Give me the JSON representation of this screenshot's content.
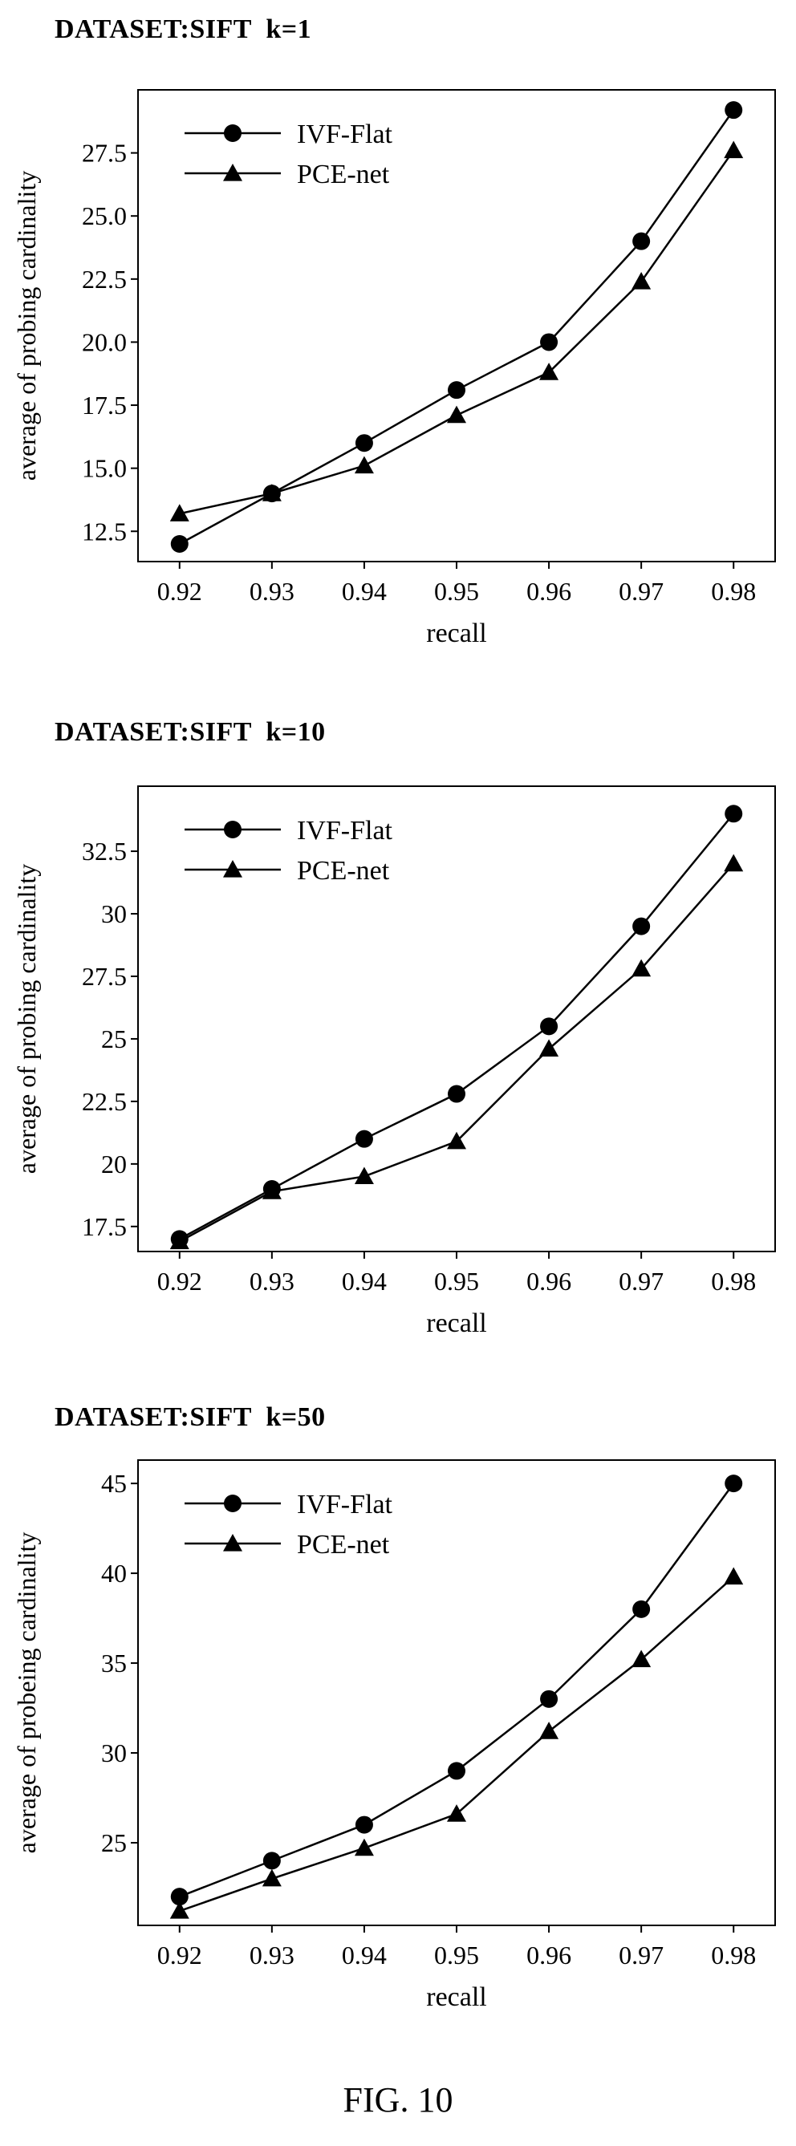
{
  "figure_caption": "FIG. 10",
  "chart_data": [
    {
      "type": "line",
      "title": "DATASET:SIFT  k=1",
      "xlabel": "recall",
      "ylabel": "average of probing cardinality",
      "x": [
        0.92,
        0.93,
        0.94,
        0.95,
        0.96,
        0.97,
        0.98
      ],
      "x_tick_labels": [
        "0.92",
        "0.93",
        "0.94",
        "0.95",
        "0.96",
        "0.97",
        "0.98"
      ],
      "y_ticks": [
        12.5,
        15.0,
        17.5,
        20.0,
        22.5,
        25.0,
        27.5
      ],
      "y_tick_labels": [
        "12.5",
        "15.0",
        "17.5",
        "20.0",
        "22.5",
        "25.0",
        "27.5"
      ],
      "ylim": [
        11.3,
        30.0
      ],
      "xlim": [
        0.9155,
        0.9845
      ],
      "legend_position": "top-left",
      "grid": false,
      "series": [
        {
          "name": "IVF-Flat",
          "marker": "circle",
          "values": [
            12.0,
            14.0,
            16.0,
            18.1,
            20.0,
            24.0,
            29.2
          ]
        },
        {
          "name": "PCE-net",
          "marker": "triangle",
          "values": [
            13.2,
            14.0,
            15.1,
            17.1,
            18.8,
            22.4,
            27.6
          ]
        }
      ]
    },
    {
      "type": "line",
      "title": "DATASET:SIFT  k=10",
      "xlabel": "recall",
      "ylabel": "average of probing cardinality",
      "x": [
        0.92,
        0.93,
        0.94,
        0.95,
        0.96,
        0.97,
        0.98
      ],
      "x_tick_labels": [
        "0.92",
        "0.93",
        "0.94",
        "0.95",
        "0.96",
        "0.97",
        "0.98"
      ],
      "y_ticks": [
        17.5,
        20,
        22.5,
        25,
        27.5,
        30,
        32.5
      ],
      "y_tick_labels": [
        "17.5",
        "20",
        "22.5",
        "25",
        "27.5",
        "30",
        "32.5"
      ],
      "ylim": [
        16.5,
        35.1
      ],
      "xlim": [
        0.9155,
        0.9845
      ],
      "legend_position": "top-left",
      "grid": false,
      "series": [
        {
          "name": "IVF-Flat",
          "marker": "circle",
          "values": [
            17.0,
            19.0,
            21.0,
            22.8,
            25.5,
            29.5,
            34.0
          ]
        },
        {
          "name": "PCE-net",
          "marker": "triangle",
          "values": [
            16.9,
            18.9,
            19.5,
            20.9,
            24.6,
            27.8,
            32.0
          ]
        }
      ]
    },
    {
      "type": "line",
      "title": "DATASET:SIFT  k=50",
      "xlabel": "recall",
      "ylabel": "average of probeing cardinality",
      "x": [
        0.92,
        0.93,
        0.94,
        0.95,
        0.96,
        0.97,
        0.98
      ],
      "x_tick_labels": [
        "0.92",
        "0.93",
        "0.94",
        "0.95",
        "0.96",
        "0.97",
        "0.98"
      ],
      "y_ticks": [
        25,
        30,
        35,
        40,
        45
      ],
      "y_tick_labels": [
        "25",
        "30",
        "35",
        "40",
        "45"
      ],
      "ylim": [
        20.4,
        46.3
      ],
      "xlim": [
        0.9155,
        0.9845
      ],
      "legend_position": "top-left",
      "grid": false,
      "series": [
        {
          "name": "IVF-Flat",
          "marker": "circle",
          "values": [
            22.0,
            24.0,
            26.0,
            29.0,
            33.0,
            38.0,
            45.0
          ]
        },
        {
          "name": "PCE-net",
          "marker": "triangle",
          "values": [
            21.2,
            23.0,
            24.7,
            26.6,
            31.2,
            35.2,
            39.8
          ]
        }
      ]
    }
  ]
}
